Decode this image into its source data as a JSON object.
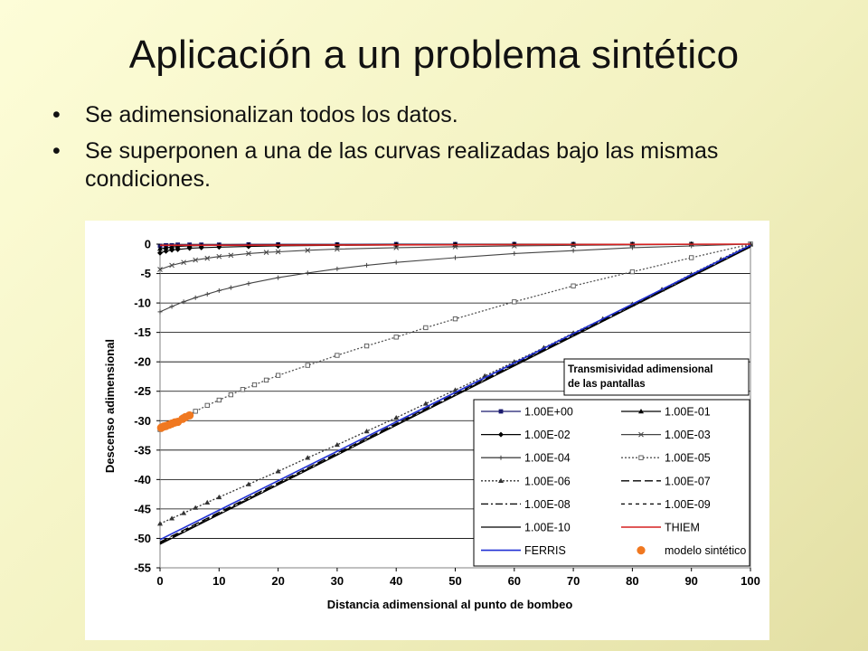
{
  "slide": {
    "title": "Aplicación a un problema sintético",
    "bullets": [
      "Se adimensionalizan todos los datos.",
      "Se superponen a una de las curvas realizadas bajo las mismas condiciones."
    ],
    "bullet_glyph": "•"
  },
  "chart_data": {
    "type": "line",
    "xlabel": "Distancia adimensional al punto de bombeo",
    "ylabel": "Descenso adimensional",
    "xlim": [
      0,
      100
    ],
    "ylim": [
      -55,
      0
    ],
    "x_ticks": [
      0,
      10,
      20,
      30,
      40,
      50,
      60,
      70,
      80,
      90,
      100
    ],
    "y_ticks": [
      0,
      -5,
      -10,
      -15,
      -20,
      -25,
      -30,
      -35,
      -40,
      -45,
      -50,
      -55
    ],
    "grid": "horizontal",
    "legend_title": "Transmisividad adimensional de las pantallas",
    "legend_title_lines": [
      "Transmisividad adimensional",
      "de las pantallas"
    ],
    "legend_placement": "bottom-right",
    "series": [
      {
        "name": "1.00E+00",
        "color": "#1a1a6e",
        "style": "solid",
        "marker": "square",
        "x": [
          0,
          1,
          2,
          3,
          5,
          7,
          10,
          15,
          20,
          30,
          40,
          50,
          60,
          70,
          80,
          90,
          100
        ],
        "y": [
          -0.3,
          -0.2,
          -0.2,
          -0.1,
          -0.1,
          -0.1,
          -0.1,
          -0.05,
          -0.05,
          -0.05,
          0,
          0,
          0,
          0,
          0,
          0,
          0
        ]
      },
      {
        "name": "1.00E-01",
        "color": "#000000",
        "style": "solid",
        "marker": "triangle",
        "x": [
          0,
          1,
          2,
          3,
          5,
          7,
          10,
          15,
          20,
          30,
          40,
          50,
          60,
          70,
          80,
          90,
          100
        ],
        "y": [
          -0.8,
          -0.6,
          -0.5,
          -0.4,
          -0.3,
          -0.25,
          -0.2,
          -0.15,
          -0.1,
          -0.1,
          -0.05,
          -0.05,
          0,
          0,
          0,
          0,
          0
        ]
      },
      {
        "name": "1.00E-02",
        "color": "#000000",
        "style": "solid",
        "marker": "diamond",
        "x": [
          0,
          1,
          2,
          3,
          5,
          7,
          10,
          15,
          20,
          30,
          40,
          50,
          60,
          70,
          80,
          90,
          100
        ],
        "y": [
          -1.5,
          -1.2,
          -1.0,
          -0.9,
          -0.7,
          -0.6,
          -0.5,
          -0.4,
          -0.3,
          -0.2,
          -0.15,
          -0.1,
          -0.1,
          -0.05,
          -0.05,
          0,
          0
        ]
      },
      {
        "name": "1.00E-03",
        "color": "#444444",
        "style": "solid",
        "marker": "x",
        "x": [
          0,
          2,
          4,
          6,
          8,
          10,
          12,
          15,
          18,
          20,
          25,
          30,
          40,
          50,
          60,
          70,
          80,
          90,
          100
        ],
        "y": [
          -4.3,
          -3.6,
          -3.1,
          -2.7,
          -2.4,
          -2.1,
          -1.9,
          -1.6,
          -1.4,
          -1.3,
          -1.05,
          -0.85,
          -0.6,
          -0.45,
          -0.3,
          -0.2,
          -0.12,
          -0.05,
          0
        ]
      },
      {
        "name": "1.00E-04",
        "color": "#444444",
        "style": "solid",
        "marker": "plus",
        "x": [
          0,
          2,
          4,
          6,
          8,
          10,
          12,
          15,
          20,
          25,
          30,
          35,
          40,
          50,
          60,
          70,
          80,
          90,
          100
        ],
        "y": [
          -11.5,
          -10.6,
          -9.8,
          -9.1,
          -8.5,
          -7.9,
          -7.4,
          -6.7,
          -5.7,
          -4.9,
          -4.2,
          -3.6,
          -3.1,
          -2.3,
          -1.6,
          -1.1,
          -0.6,
          -0.3,
          0
        ]
      },
      {
        "name": "1.00E-05",
        "color": "#555555",
        "style": "dotted",
        "marker": "square-open",
        "x": [
          0,
          2,
          4,
          6,
          8,
          10,
          12,
          14,
          16,
          18,
          20,
          25,
          30,
          35,
          40,
          45,
          50,
          60,
          70,
          80,
          90,
          100
        ],
        "y": [
          -31.5,
          -30.4,
          -29.4,
          -28.4,
          -27.4,
          -26.5,
          -25.6,
          -24.7,
          -23.9,
          -23.1,
          -22.3,
          -20.6,
          -18.9,
          -17.3,
          -15.8,
          -14.2,
          -12.7,
          -9.8,
          -7.1,
          -4.7,
          -2.3,
          0
        ]
      },
      {
        "name": "1.00E-06",
        "color": "#333333",
        "style": "dotted",
        "marker": "triangle",
        "x": [
          0,
          2,
          4,
          6,
          8,
          10,
          15,
          20,
          25,
          30,
          35,
          40,
          45,
          50,
          55,
          60,
          65,
          70,
          75,
          80,
          85,
          90,
          95,
          100
        ],
        "y": [
          -47.5,
          -46.6,
          -45.7,
          -44.8,
          -43.9,
          -43.0,
          -40.8,
          -38.6,
          -36.3,
          -34.1,
          -31.8,
          -29.5,
          -27.1,
          -24.8,
          -22.4,
          -20.0,
          -17.6,
          -15.1,
          -12.7,
          -10.2,
          -7.7,
          -5.1,
          -2.6,
          0
        ]
      },
      {
        "name": "1.00E-07",
        "color": "#000000",
        "style": "longdash",
        "marker": "none",
        "x": [
          0,
          100
        ],
        "y": [
          -50.6,
          -0.3
        ]
      },
      {
        "name": "1.00E-08",
        "color": "#000000",
        "style": "dashdot",
        "marker": "none",
        "x": [
          0,
          100
        ],
        "y": [
          -50.8,
          -0.4
        ]
      },
      {
        "name": "1.00E-09",
        "color": "#000000",
        "style": "shortdash",
        "marker": "none",
        "x": [
          0,
          100
        ],
        "y": [
          -50.9,
          -0.45
        ]
      },
      {
        "name": "1.00E-10",
        "color": "#000000",
        "style": "solid",
        "marker": "none",
        "x": [
          0,
          100
        ],
        "y": [
          -51.0,
          -0.5
        ]
      },
      {
        "name": "THIEM",
        "color": "#d62020",
        "style": "solid",
        "marker": "none",
        "x": [
          0,
          100
        ],
        "y": [
          -0.2,
          0
        ]
      },
      {
        "name": "FERRIS",
        "color": "#1f2fd4",
        "style": "solid",
        "marker": "none",
        "x": [
          0,
          100
        ],
        "y": [
          -50.2,
          -0.2
        ]
      },
      {
        "name": "modelo sintético",
        "color": "#f07820",
        "style": "none",
        "marker": "circle",
        "x": [
          0.2,
          0.6,
          1.0,
          1.5,
          2.0,
          2.5,
          3.0,
          3.8,
          4.3,
          5.0
        ],
        "y": [
          -31.2,
          -31.0,
          -30.9,
          -30.7,
          -30.5,
          -30.3,
          -30.2,
          -29.7,
          -29.4,
          -29.1
        ]
      }
    ]
  }
}
